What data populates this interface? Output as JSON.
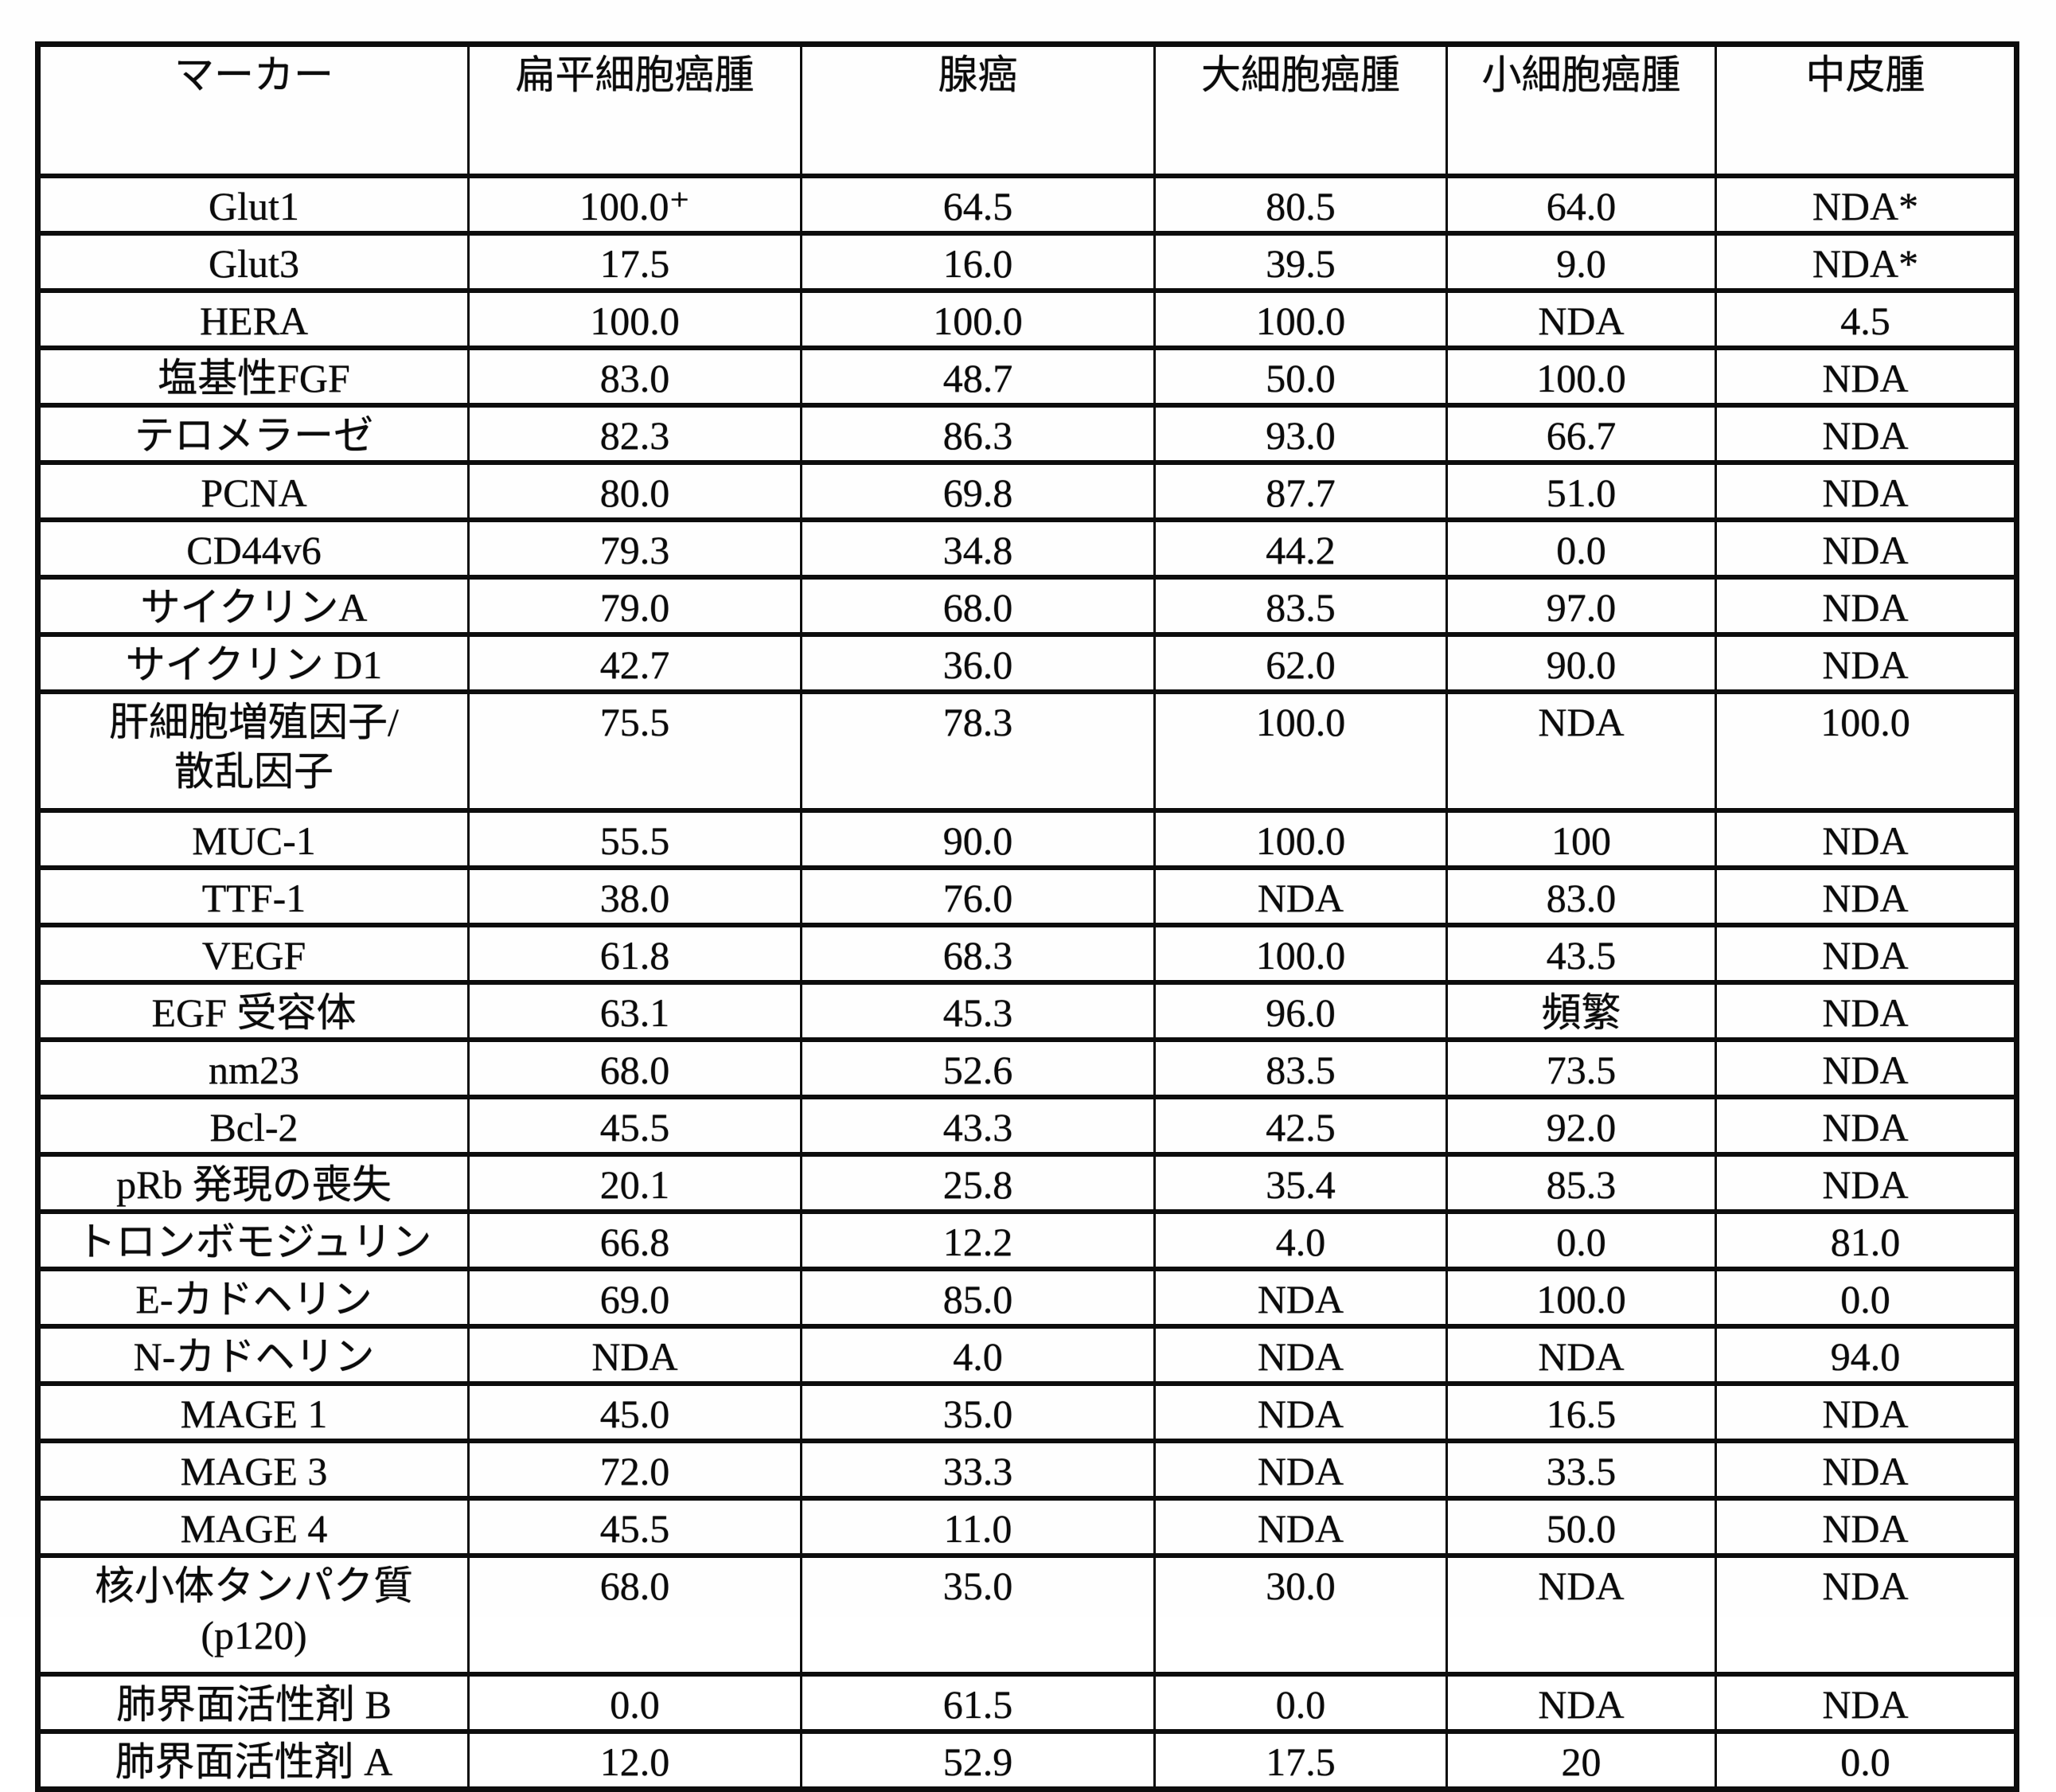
{
  "colors": {
    "ink": "#0d0d0d",
    "paper": "#ffffff"
  },
  "table": {
    "columns": [
      "マーカー",
      "扁平細胞癌腫",
      "腺癌",
      "大細胞癌腫",
      "小細胞癌腫",
      "中皮腫"
    ],
    "rows": [
      {
        "marker": "Glut1",
        "values": [
          "100.0⁺",
          "64.5",
          "80.5",
          "64.0",
          "NDA*"
        ]
      },
      {
        "marker": "Glut3",
        "values": [
          "17.5",
          "16.0",
          "39.5",
          "9.0",
          "NDA*"
        ]
      },
      {
        "marker": "HERA",
        "values": [
          "100.0",
          "100.0",
          "100.0",
          "NDA",
          "4.5"
        ]
      },
      {
        "marker": "塩基性FGF",
        "values": [
          "83.0",
          "48.7",
          "50.0",
          "100.0",
          "NDA"
        ]
      },
      {
        "marker": "テロメラーゼ",
        "values": [
          "82.3",
          "86.3",
          "93.0",
          "66.7",
          "NDA"
        ]
      },
      {
        "marker": "PCNA",
        "values": [
          "80.0",
          "69.8",
          "87.7",
          "51.0",
          "NDA"
        ]
      },
      {
        "marker": "CD44v6",
        "values": [
          "79.3",
          "34.8",
          "44.2",
          "0.0",
          "NDA"
        ]
      },
      {
        "marker": "サイクリンA",
        "values": [
          "79.0",
          "68.0",
          "83.5",
          "97.0",
          "NDA"
        ]
      },
      {
        "marker": "サイクリン D1",
        "values": [
          "42.7",
          "36.0",
          "62.0",
          "90.0",
          "NDA"
        ]
      },
      {
        "marker": "肝細胞増殖因子/\n散乱因子",
        "values": [
          "75.5",
          "78.3",
          "100.0",
          "NDA",
          "100.0"
        ]
      },
      {
        "marker": "MUC-1",
        "values": [
          "55.5",
          "90.0",
          "100.0",
          "100",
          "NDA"
        ]
      },
      {
        "marker": "TTF-1",
        "values": [
          "38.0",
          "76.0",
          "NDA",
          "83.0",
          "NDA"
        ]
      },
      {
        "marker": "VEGF",
        "values": [
          "61.8",
          "68.3",
          "100.0",
          "43.5",
          "NDA"
        ]
      },
      {
        "marker": "EGF 受容体",
        "values": [
          "63.1",
          "45.3",
          "96.0",
          "頻繁",
          "NDA"
        ]
      },
      {
        "marker": "nm23",
        "values": [
          "68.0",
          "52.6",
          "83.5",
          "73.5",
          "NDA"
        ]
      },
      {
        "marker": "Bcl-2",
        "values": [
          "45.5",
          "43.3",
          "42.5",
          "92.0",
          "NDA"
        ]
      },
      {
        "marker": "pRb 発現の喪失",
        "values": [
          "20.1",
          "25.8",
          "35.4",
          "85.3",
          "NDA"
        ]
      },
      {
        "marker": "トロンボモジュリン",
        "values": [
          "66.8",
          "12.2",
          "4.0",
          "0.0",
          "81.0"
        ]
      },
      {
        "marker": "E-カドヘリン",
        "values": [
          "69.0",
          "85.0",
          "NDA",
          "100.0",
          "0.0"
        ]
      },
      {
        "marker": "N-カドヘリン",
        "values": [
          "NDA",
          "4.0",
          "NDA",
          "NDA",
          "94.0"
        ]
      },
      {
        "marker": "MAGE 1",
        "values": [
          "45.0",
          "35.0",
          "NDA",
          "16.5",
          "NDA"
        ]
      },
      {
        "marker": "MAGE 3",
        "values": [
          "72.0",
          "33.3",
          "NDA",
          "33.5",
          "NDA"
        ]
      },
      {
        "marker": "MAGE 4",
        "values": [
          "45.5",
          "11.0",
          "NDA",
          "50.0",
          "NDA"
        ]
      },
      {
        "marker": "核小体タンパク質\n(p120)",
        "values": [
          "68.0",
          "35.0",
          "30.0",
          "NDA",
          "NDA"
        ]
      },
      {
        "marker": "肺界面活性剤 B",
        "values": [
          "0.0",
          "61.5",
          "0.0",
          "NDA",
          "NDA"
        ]
      },
      {
        "marker": "肺界面活性剤 A",
        "values": [
          "12.0",
          "52.9",
          "17.5",
          "20",
          "0.0"
        ]
      }
    ]
  }
}
